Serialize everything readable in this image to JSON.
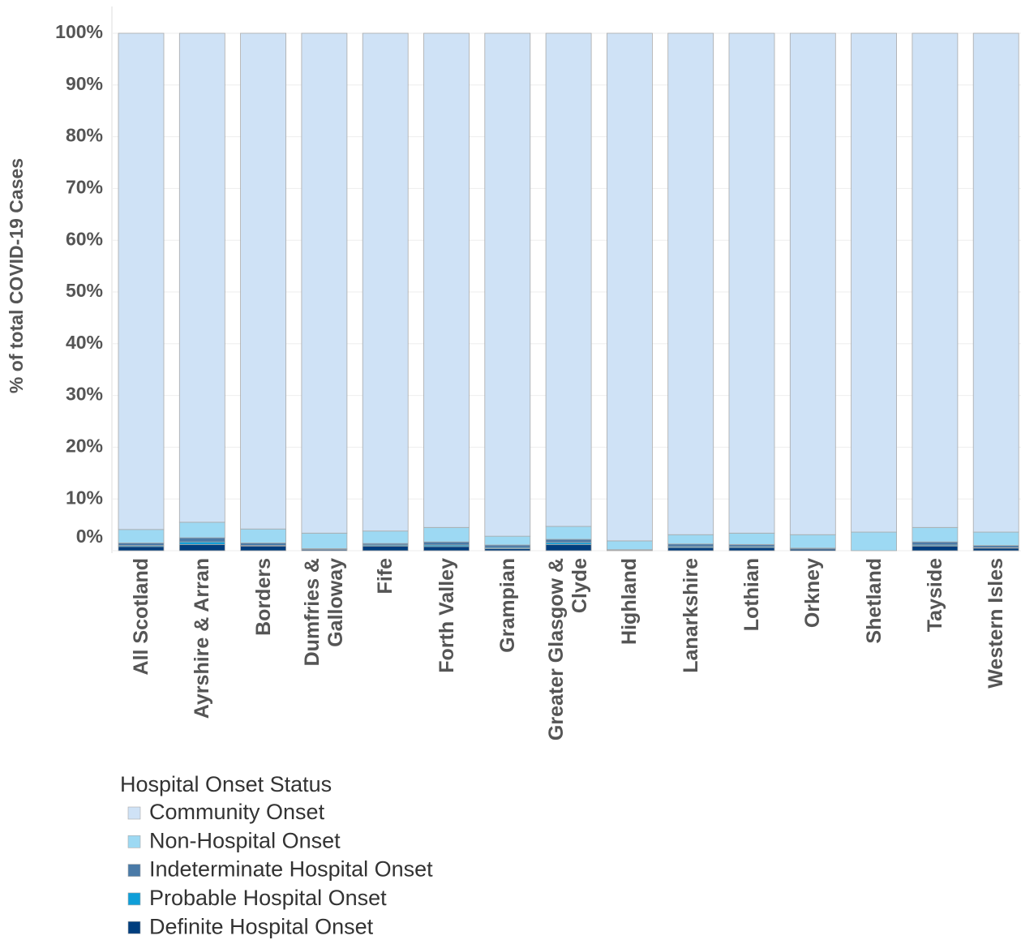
{
  "chart_data": {
    "type": "stacked_bar",
    "y_label": "% of total COVID-19 Cases",
    "categories": [
      "All Scotland",
      "Ayrshire & Arran",
      "Borders",
      "Dumfries & Galloway",
      "Fife",
      "Forth Valley",
      "Grampian",
      "Greater Glasgow & Clyde",
      "Highland",
      "Lanarkshire",
      "Lothian",
      "Orkney",
      "Shetland",
      "Tayside",
      "Western Isles"
    ],
    "series": [
      {
        "name": "Community Onset",
        "color": "#cfe2f6",
        "values": [
          95.9,
          94.5,
          95.8,
          96.6,
          96.2,
          95.5,
          97.2,
          95.3,
          98.1,
          96.9,
          96.6,
          96.9,
          96.4,
          95.5,
          96.4
        ]
      },
      {
        "name": "Non-Hospital Onset",
        "color": "#9dd9f3",
        "values": [
          2.6,
          3.0,
          2.7,
          3.0,
          2.4,
          2.8,
          1.7,
          2.5,
          1.7,
          1.8,
          2.2,
          2.6,
          3.6,
          2.8,
          2.6
        ]
      },
      {
        "name": "Indeterminate Hospital Onset",
        "color": "#4a7aa7",
        "values": [
          0.5,
          0.8,
          0.5,
          0.2,
          0.3,
          0.6,
          0.5,
          0.6,
          0.1,
          0.5,
          0.4,
          0.2,
          0,
          0.6,
          0.4
        ]
      },
      {
        "name": "Probable Hospital Onset",
        "color": "#0f9ed8",
        "values": [
          0.2,
          0.5,
          0.1,
          0,
          0.2,
          0.3,
          0.2,
          0.4,
          0,
          0.2,
          0.2,
          0,
          0,
          0.2,
          0.1
        ]
      },
      {
        "name": "Definite Hospital Onset",
        "color": "#003e7e",
        "values": [
          0.8,
          1.2,
          0.9,
          0.2,
          0.9,
          0.8,
          0.4,
          1.2,
          0.1,
          0.6,
          0.6,
          0.3,
          0,
          0.9,
          0.5
        ]
      }
    ],
    "ylim": [
      0,
      100
    ],
    "yticks": [
      {
        "value": 0,
        "label": "0%"
      },
      {
        "value": 10,
        "label": "10%"
      },
      {
        "value": 20,
        "label": "20%"
      },
      {
        "value": 30,
        "label": "30%"
      },
      {
        "value": 40,
        "label": "40%"
      },
      {
        "value": 50,
        "label": "50%"
      },
      {
        "value": 60,
        "label": "60%"
      },
      {
        "value": 70,
        "label": "70%"
      },
      {
        "value": 80,
        "label": "80%"
      },
      {
        "value": 90,
        "label": "90%"
      },
      {
        "value": 100,
        "label": "100%"
      }
    ],
    "grid": true,
    "legend_title": "Hospital Onset Status",
    "legend_position": "bottom-left"
  }
}
